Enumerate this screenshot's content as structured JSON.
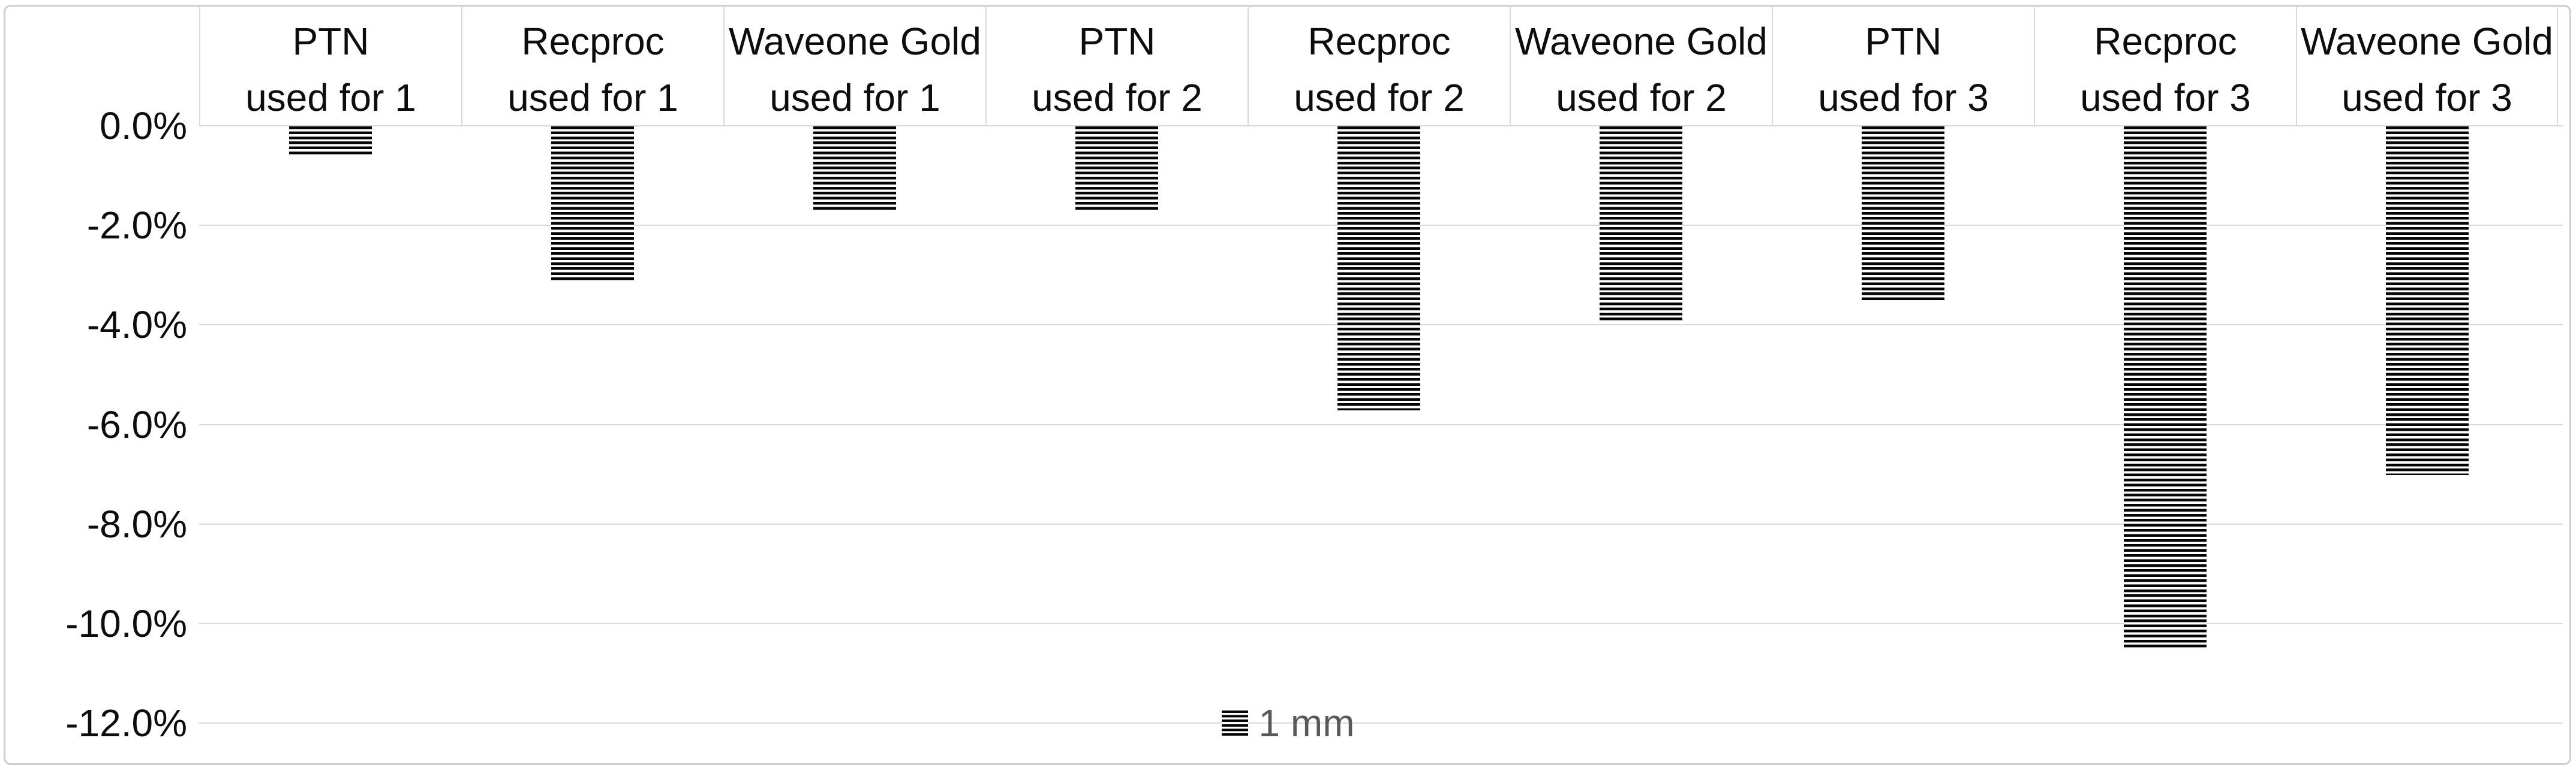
{
  "chart_data": {
    "type": "bar",
    "title": "",
    "xlabel": "",
    "ylabel": "",
    "categories": [
      {
        "name": "PTN",
        "usage": "used for 1"
      },
      {
        "name": "Recproc",
        "usage": "used for 1"
      },
      {
        "name": "Waveone Gold",
        "usage": "used for 1"
      },
      {
        "name": "PTN",
        "usage": "used for 2"
      },
      {
        "name": "Recproc",
        "usage": "used for 2"
      },
      {
        "name": "Waveone Gold",
        "usage": "used for 2"
      },
      {
        "name": "PTN",
        "usage": "used for 3"
      },
      {
        "name": "Recproc",
        "usage": "used for 3"
      },
      {
        "name": "Waveone Gold",
        "usage": "used for 3"
      }
    ],
    "series": [
      {
        "name": "1 mm",
        "values": [
          -0.6,
          -3.1,
          -1.7,
          -1.7,
          -5.7,
          -3.9,
          -3.5,
          -10.5,
          -7.0
        ]
      }
    ],
    "y_ticks": [
      "0.0%",
      "-2.0%",
      "-4.0%",
      "-6.0%",
      "-8.0%",
      "-10.0%",
      "-12.0%"
    ],
    "ylim": [
      -12,
      0
    ],
    "ytick_step": 2,
    "grid": true,
    "legend_position": "bottom-center",
    "bar_style": "horizontal-black-hatch-on-white",
    "colors": {
      "bar_hatch": "#000000",
      "gridline": "#d9d9d9",
      "frame_border": "#cfcecd",
      "axis_text": "#0d0d0d",
      "legend_text": "#595959",
      "background": "#ffffff"
    }
  },
  "legend": {
    "label": "1 mm"
  }
}
